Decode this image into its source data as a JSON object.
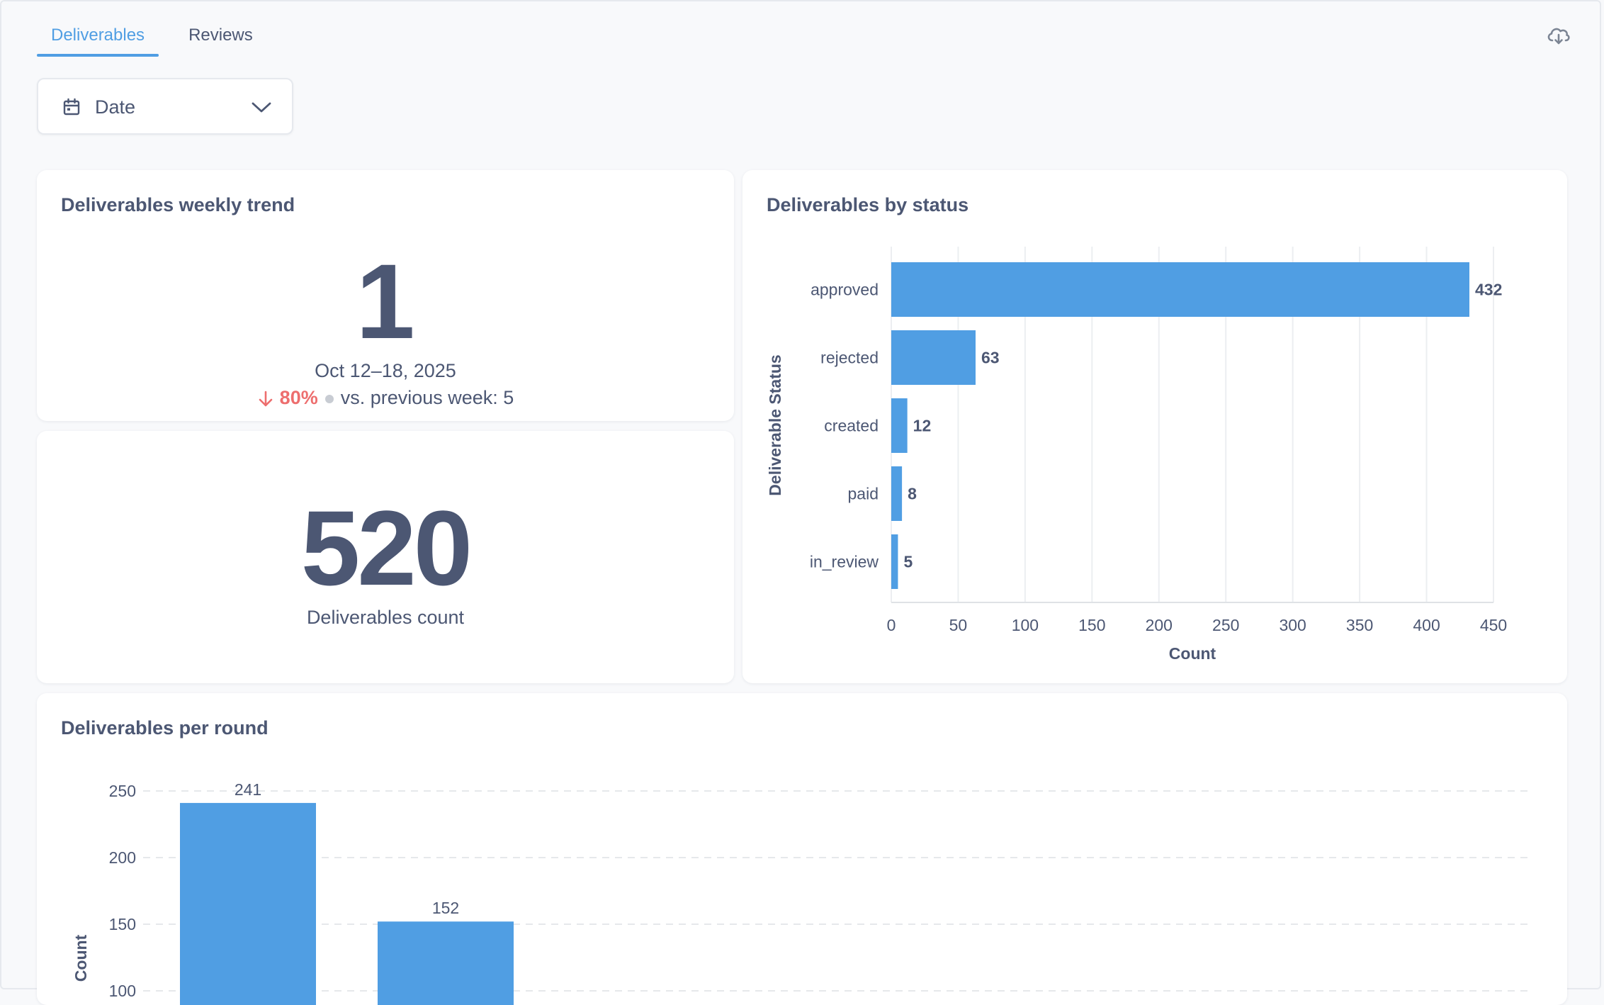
{
  "tabs": [
    {
      "label": "Deliverables",
      "active": true
    },
    {
      "label": "Reviews",
      "active": false
    }
  ],
  "filter": {
    "label": "Date"
  },
  "weekly_trend": {
    "title": "Deliverables weekly trend",
    "value": "1",
    "period": "Oct 12–18, 2025",
    "change": "80%",
    "comparison": "vs. previous week: 5"
  },
  "count_card": {
    "value": "520",
    "label": "Deliverables count"
  },
  "colors": {
    "accent": "#509ee3",
    "negative": "#ed6e6e",
    "text": "#4c5773"
  },
  "chart_data": [
    {
      "type": "bar",
      "orientation": "horizontal",
      "title": "Deliverables by status",
      "categories": [
        "approved",
        "rejected",
        "created",
        "paid",
        "in_review"
      ],
      "values": [
        432,
        63,
        12,
        8,
        5
      ],
      "xlabel": "Count",
      "ylabel": "Deliverable Status",
      "xlim": [
        0,
        450
      ],
      "xticks": [
        0,
        50,
        100,
        150,
        200,
        250,
        300,
        350,
        400,
        450
      ],
      "grid": true
    },
    {
      "type": "bar",
      "title": "Deliverables per round",
      "categories": [
        "",
        ""
      ],
      "values": [
        241,
        152
      ],
      "ylabel": "Count",
      "yticks": [
        100,
        150,
        200,
        250
      ],
      "grid": true
    }
  ]
}
